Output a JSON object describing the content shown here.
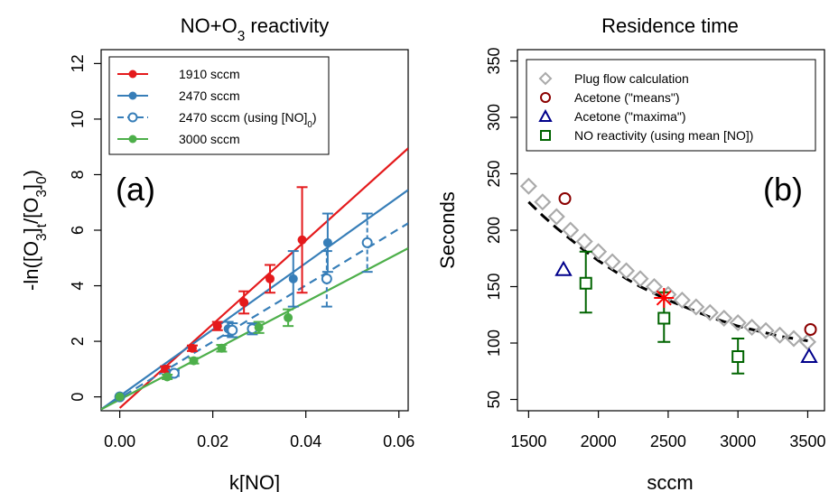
{
  "chart_data": [
    {
      "type": "scatter",
      "title": "NO+O3 reactivity",
      "xlabel": "k[NO]",
      "ylabel": "-ln([O3]t/[O3]0)",
      "panel_label": "(a)",
      "xlim": [
        -0.004,
        0.062
      ],
      "ylim": [
        -0.5,
        12.5
      ],
      "xticks": [
        "0.00",
        "0.02",
        "0.04",
        "0.06"
      ],
      "yticks": [
        "0",
        "2",
        "4",
        "6",
        "8",
        "10",
        "12"
      ],
      "legend_position": "top-left",
      "series": [
        {
          "name": "1910 sccm",
          "color": "#e41a1c",
          "marker": "filled-circle",
          "line_style": "solid",
          "x": [
            0.0,
            0.0098,
            0.0156,
            0.021,
            0.0267,
            0.0323,
            0.0392
          ],
          "y": [
            0.0,
            1.0,
            1.75,
            2.55,
            3.4,
            4.25,
            5.65
          ],
          "err": [
            0,
            0.1,
            0.1,
            0.15,
            0.4,
            0.5,
            1.9
          ],
          "fit": {
            "x0": 0.0,
            "y0": -0.4,
            "x1": 0.062,
            "y1": 8.95
          }
        },
        {
          "name": "2470 sccm",
          "color": "#377eb8",
          "marker": "filled-circle",
          "line_style": "solid",
          "x": [
            0.0,
            0.0115,
            0.0233,
            0.0373,
            0.0447
          ],
          "y": [
            0.0,
            0.87,
            2.45,
            4.25,
            5.55
          ],
          "err": [
            0,
            0.1,
            0.25,
            1.0,
            1.05
          ],
          "fit": {
            "x0": -0.004,
            "y0": -0.45,
            "x1": 0.062,
            "y1": 7.45
          }
        },
        {
          "name": "2470 sccm (using [NO]0)",
          "color": "#377eb8",
          "marker": "open-circle",
          "line_style": "dashed",
          "x": [
            0.0,
            0.0117,
            0.0242,
            0.0285,
            0.0445,
            0.0532
          ],
          "y": [
            0.0,
            0.85,
            2.4,
            2.45,
            4.25,
            5.55
          ],
          "err": [
            0,
            0.1,
            0.25,
            0.2,
            1.0,
            1.05
          ],
          "fit": {
            "x0": -0.004,
            "y0": -0.45,
            "x1": 0.062,
            "y1": 6.25
          }
        },
        {
          "name": "3000 sccm",
          "color": "#4daf4a",
          "marker": "filled-circle",
          "line_style": "solid",
          "x": [
            0.0,
            0.0102,
            0.0159,
            0.0219,
            0.0299,
            0.0362
          ],
          "y": [
            0.0,
            0.72,
            1.3,
            1.75,
            2.5,
            2.85
          ],
          "err": [
            0,
            0.08,
            0.1,
            0.12,
            0.2,
            0.3
          ],
          "fit": {
            "x0": -0.004,
            "y0": -0.45,
            "x1": 0.062,
            "y1": 5.35
          }
        }
      ],
      "legend": [
        {
          "label_main": "1910 sccm",
          "label_sub": "",
          "label_tail": ""
        },
        {
          "label_main": "2470 sccm",
          "label_sub": "",
          "label_tail": ""
        },
        {
          "label_main": "2470 sccm (using [NO]",
          "label_sub": "0",
          "label_tail": ")"
        },
        {
          "label_main": "3000 sccm",
          "label_sub": "",
          "label_tail": ""
        }
      ]
    },
    {
      "type": "scatter",
      "title": "Residence time",
      "xlabel": "sccm",
      "ylabel": "Seconds",
      "panel_label": "(b)",
      "xlim": [
        1420,
        3620
      ],
      "ylim": [
        40,
        360
      ],
      "xticks": [
        "1500",
        "2000",
        "2500",
        "3000",
        "3500"
      ],
      "yticks": [
        "50",
        "100",
        "150",
        "200",
        "250",
        "300",
        "350"
      ],
      "legend_position": "top-left",
      "series": [
        {
          "name": "Plug flow calculation",
          "color": "#aaaaaa",
          "marker": "open-diamond",
          "x": [
            1500,
            1600,
            1700,
            1800,
            1900,
            2000,
            2100,
            2200,
            2300,
            2400,
            2500,
            2600,
            2700,
            2800,
            2900,
            3000,
            3100,
            3200,
            3300,
            3400,
            3500
          ],
          "y": [
            239,
            225,
            212,
            200,
            190,
            181,
            172,
            164,
            157,
            150,
            143,
            138,
            132,
            127,
            122,
            118,
            114,
            111,
            107,
            104,
            101
          ]
        },
        {
          "name": "Acetone (\"means\")",
          "color": "#8b0000",
          "marker": "open-circle",
          "x": [
            1760,
            3520
          ],
          "y": [
            228,
            112
          ]
        },
        {
          "name": "Acetone (\"maxima\")",
          "color": "#00008b",
          "marker": "open-triangle",
          "x": [
            1750,
            3510
          ],
          "y": [
            165,
            88
          ]
        },
        {
          "name": "NO reactivity (using mean [NO])",
          "color": "#006400",
          "marker": "open-square",
          "x": [
            1910,
            2470,
            3000
          ],
          "y": [
            153,
            122,
            88
          ],
          "err_low": [
            127,
            101,
            73
          ],
          "err_high": [
            181,
            145,
            104
          ]
        }
      ],
      "dashed_fit": {
        "color": "#000000",
        "x": [
          1500,
          1600,
          1700,
          1800,
          1900,
          2000,
          2100,
          2200,
          2300,
          2400,
          2500,
          2600,
          2700,
          2800,
          2900,
          3000,
          3100,
          3200,
          3300,
          3400,
          3500
        ],
        "y": [
          225,
          213,
          202,
          192,
          182,
          173,
          165,
          157,
          150,
          144,
          138,
          133,
          128,
          123,
          119,
          115,
          112,
          109,
          106,
          104,
          102
        ]
      },
      "star_marker": {
        "color": "#ff0000",
        "x": 2470,
        "y": 140
      },
      "legend": [
        {
          "label": "Plug flow calculation"
        },
        {
          "label": "Acetone (\"means\")"
        },
        {
          "label": "Acetone (\"maxima\")"
        },
        {
          "label": "NO reactivity (using mean [NO])"
        }
      ]
    }
  ]
}
